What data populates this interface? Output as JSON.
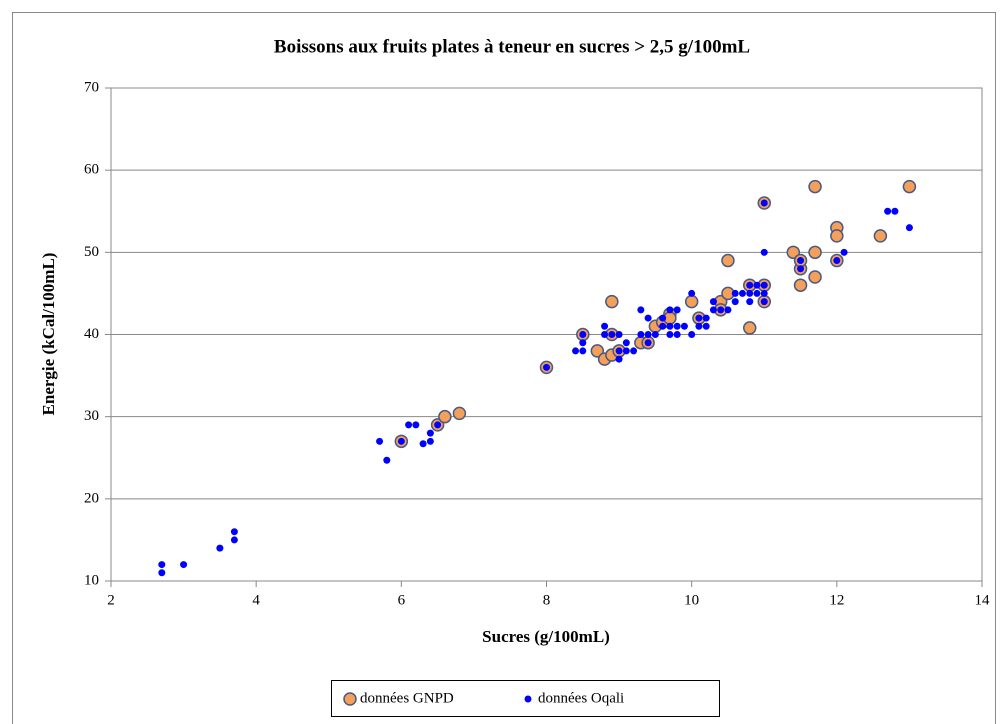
{
  "chart_data": {
    "type": "scatter",
    "title": "Boissons aux fruits plates à teneur  en sucres > 2,5 g/100mL",
    "x_label": "Sucres (g/100mL)",
    "y_label": "Energie (kCal/100mL)",
    "xlim": [
      2,
      14
    ],
    "xticks": [
      2,
      4,
      6,
      8,
      10,
      12,
      14
    ],
    "ylim": [
      10,
      70
    ],
    "yticks": [
      10,
      20,
      30,
      40,
      50,
      60,
      70
    ],
    "grid": true,
    "legend": "bottom",
    "series": [
      {
        "name": "données GNPD",
        "color": "#f4a05a",
        "x": [
          6.0,
          6.5,
          6.6,
          6.8,
          8.0,
          8.5,
          8.7,
          8.8,
          8.9,
          8.9,
          8.9,
          9.0,
          9.3,
          9.4,
          9.5,
          9.6,
          9.7,
          9.7,
          10.0,
          10.1,
          10.4,
          10.4,
          10.5,
          10.5,
          10.8,
          10.8,
          11.0,
          11.0,
          11.0,
          11.4,
          11.5,
          11.5,
          11.5,
          11.7,
          11.7,
          11.7,
          12.0,
          12.0,
          12.0,
          12.6,
          13.0
        ],
        "values": [
          27,
          29,
          30,
          30.4,
          36,
          40,
          38,
          37,
          37.5,
          44,
          40,
          38,
          39,
          39,
          41,
          41.5,
          42.5,
          42,
          44,
          42,
          44,
          43,
          45,
          49,
          40.8,
          46,
          46,
          44,
          56,
          50,
          46,
          48,
          49,
          47,
          50,
          58,
          53,
          52,
          49,
          52,
          58
        ]
      },
      {
        "name": "données Oqali",
        "color": "#0000ff",
        "x": [
          2.7,
          2.7,
          3.0,
          3.5,
          3.7,
          3.7,
          5.7,
          5.8,
          6.0,
          6.1,
          6.2,
          6.3,
          6.4,
          6.4,
          6.5,
          8.0,
          8.4,
          8.5,
          8.5,
          8.5,
          8.8,
          8.8,
          8.9,
          9.0,
          9.0,
          9.0,
          9.1,
          9.1,
          9.2,
          9.3,
          9.3,
          9.4,
          9.4,
          9.4,
          9.5,
          9.6,
          9.6,
          9.7,
          9.7,
          9.7,
          9.8,
          9.8,
          9.8,
          9.9,
          10.0,
          10.0,
          10.1,
          10.1,
          10.2,
          10.2,
          10.3,
          10.3,
          10.4,
          10.5,
          10.6,
          10.6,
          10.7,
          10.8,
          10.8,
          10.8,
          10.9,
          10.9,
          11.0,
          11.0,
          11.0,
          11.0,
          11.0,
          11.5,
          11.5,
          12.0,
          12.1,
          12.7,
          12.8,
          13.0
        ],
        "values": [
          12,
          11,
          12,
          14,
          16,
          15,
          27,
          24.7,
          27,
          29,
          29,
          26.7,
          27,
          28,
          29,
          36,
          38,
          38,
          39,
          40,
          40,
          41,
          40,
          37,
          38,
          40,
          38,
          39,
          38,
          40,
          43,
          39,
          40,
          42,
          40,
          41,
          42,
          40,
          41,
          43,
          40,
          41,
          43,
          41,
          40,
          45,
          41,
          42,
          41,
          42,
          43,
          44,
          43,
          43,
          44,
          45,
          45,
          44,
          45,
          46,
          45,
          46,
          44,
          45,
          46,
          50,
          56,
          48,
          49,
          49,
          50,
          55,
          55,
          53
        ]
      }
    ]
  }
}
